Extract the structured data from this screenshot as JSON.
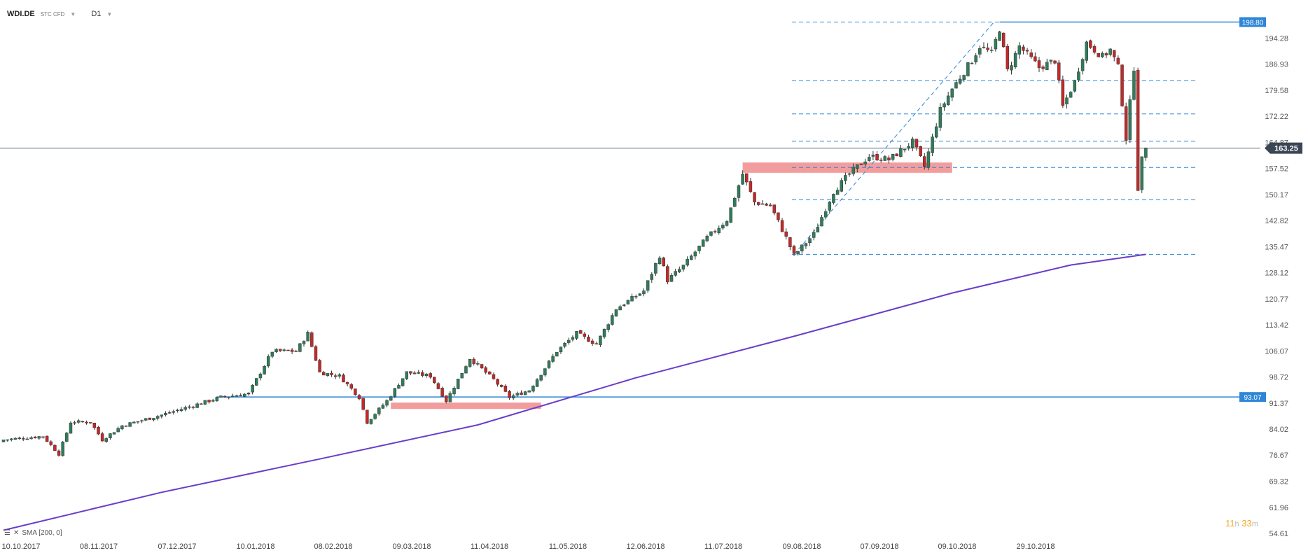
{
  "header": {
    "symbol": "WDI.DE",
    "tag": "STC CFD",
    "timeframe": "D1"
  },
  "indicator": {
    "legend": "SMA [200, 0]"
  },
  "countdown": {
    "hours": "11",
    "hours_unit": "h",
    "minutes": "33",
    "minutes_unit": "m"
  },
  "colors": {
    "bull": "#2e7d5b",
    "bear": "#c62828",
    "sma": "#6a3dc9",
    "fib": "#2f86d6",
    "zone": "#f08c8c",
    "price_line": "#5a6b7a"
  },
  "chart_data": {
    "type": "candlestick",
    "x_tick_labels": [
      "10.10.2017",
      "08.11.2017",
      "07.12.2017",
      "10.01.2018",
      "08.02.2018",
      "09.03.2018",
      "11.04.2018",
      "11.05.2018",
      "12.06.2018",
      "11.07.2018",
      "09.08.2018",
      "07.09.2018",
      "09.10.2018",
      "29.10.2018"
    ],
    "y_tick_labels": [
      "194.28",
      "186.93",
      "179.58",
      "172.22",
      "164.87",
      "157.52",
      "150.17",
      "142.82",
      "135.47",
      "128.12",
      "120.77",
      "113.42",
      "106.07",
      "98.72",
      "91.37",
      "84.02",
      "76.67",
      "69.32",
      "61.96",
      "54.61"
    ],
    "y_ticks": [
      194.28,
      186.93,
      179.58,
      172.22,
      164.87,
      157.52,
      150.17,
      142.82,
      135.47,
      128.12,
      120.77,
      113.42,
      106.07,
      98.72,
      91.37,
      84.02,
      76.67,
      69.32,
      61.96,
      54.61
    ],
    "ylim": [
      54.61,
      199.5
    ],
    "current_price": 163.25,
    "current_price_label": "163.25",
    "levels": [
      {
        "value": 198.8,
        "label": "198.80"
      },
      {
        "value": 93.07,
        "label": "93.07"
      }
    ],
    "fib_levels": [
      198.8,
      182.3,
      172.9,
      165.2,
      157.8,
      148.7,
      133.3
    ],
    "candle_anchors": [
      {
        "i": 0,
        "c": 81
      },
      {
        "i": 10,
        "c": 82
      },
      {
        "i": 14,
        "c": 77
      },
      {
        "i": 17,
        "c": 86
      },
      {
        "i": 22,
        "c": 86
      },
      {
        "i": 25,
        "c": 81
      },
      {
        "i": 30,
        "c": 85
      },
      {
        "i": 40,
        "c": 88
      },
      {
        "i": 55,
        "c": 93
      },
      {
        "i": 62,
        "c": 94
      },
      {
        "i": 68,
        "c": 106
      },
      {
        "i": 74,
        "c": 106
      },
      {
        "i": 77,
        "c": 111
      },
      {
        "i": 80,
        "c": 100
      },
      {
        "i": 85,
        "c": 99
      },
      {
        "i": 90,
        "c": 93
      },
      {
        "i": 92,
        "c": 86
      },
      {
        "i": 97,
        "c": 92
      },
      {
        "i": 102,
        "c": 100
      },
      {
        "i": 108,
        "c": 99
      },
      {
        "i": 112,
        "c": 92
      },
      {
        "i": 118,
        "c": 104
      },
      {
        "i": 124,
        "c": 98
      },
      {
        "i": 128,
        "c": 93
      },
      {
        "i": 133,
        "c": 95
      },
      {
        "i": 140,
        "c": 106
      },
      {
        "i": 145,
        "c": 111
      },
      {
        "i": 150,
        "c": 108
      },
      {
        "i": 155,
        "c": 118
      },
      {
        "i": 162,
        "c": 123
      },
      {
        "i": 166,
        "c": 133
      },
      {
        "i": 168,
        "c": 126
      },
      {
        "i": 172,
        "c": 130
      },
      {
        "i": 178,
        "c": 138
      },
      {
        "i": 183,
        "c": 143
      },
      {
        "i": 187,
        "c": 156
      },
      {
        "i": 190,
        "c": 148
      },
      {
        "i": 194,
        "c": 147
      },
      {
        "i": 198,
        "c": 138
      },
      {
        "i": 200,
        "c": 133
      },
      {
        "i": 205,
        "c": 139
      },
      {
        "i": 210,
        "c": 151
      },
      {
        "i": 214,
        "c": 156
      },
      {
        "i": 219,
        "c": 161
      },
      {
        "i": 224,
        "c": 160
      },
      {
        "i": 230,
        "c": 165
      },
      {
        "i": 233,
        "c": 158
      },
      {
        "i": 237,
        "c": 174
      },
      {
        "i": 240,
        "c": 180
      },
      {
        "i": 245,
        "c": 188
      },
      {
        "i": 247,
        "c": 192
      },
      {
        "i": 250,
        "c": 190
      },
      {
        "i": 252,
        "c": 197
      },
      {
        "i": 254,
        "c": 185
      },
      {
        "i": 257,
        "c": 192
      },
      {
        "i": 262,
        "c": 186
      },
      {
        "i": 266,
        "c": 188
      },
      {
        "i": 268,
        "c": 175
      },
      {
        "i": 271,
        "c": 182
      },
      {
        "i": 274,
        "c": 193
      },
      {
        "i": 278,
        "c": 189
      },
      {
        "i": 280,
        "c": 191
      },
      {
        "i": 282,
        "c": 186
      },
      {
        "i": 284,
        "c": 166
      },
      {
        "i": 286,
        "c": 186
      },
      {
        "i": 287,
        "c": 152
      },
      {
        "i": 288,
        "c": 160
      },
      {
        "i": 289,
        "c": 163.25
      }
    ],
    "sma_200": [
      {
        "i": 0,
        "v": 55.5
      },
      {
        "i": 40,
        "v": 66.2
      },
      {
        "i": 80,
        "v": 75.6
      },
      {
        "i": 120,
        "v": 85.2
      },
      {
        "i": 160,
        "v": 98.5
      },
      {
        "i": 200,
        "v": 110.2
      },
      {
        "i": 240,
        "v": 122.4
      },
      {
        "i": 270,
        "v": 130.3
      },
      {
        "i": 289,
        "v": 133.3
      }
    ],
    "resistance_zone": {
      "i0": 187,
      "i1": 240,
      "y0": 156.3,
      "y1": 159.2
    },
    "support_zone": {
      "i0": 98,
      "i1": 136,
      "y0": 89.7,
      "y1": 91.5
    },
    "trend_line": {
      "i0": 200,
      "v0": 133.3,
      "i1": 252,
      "v1": 198.8
    }
  }
}
